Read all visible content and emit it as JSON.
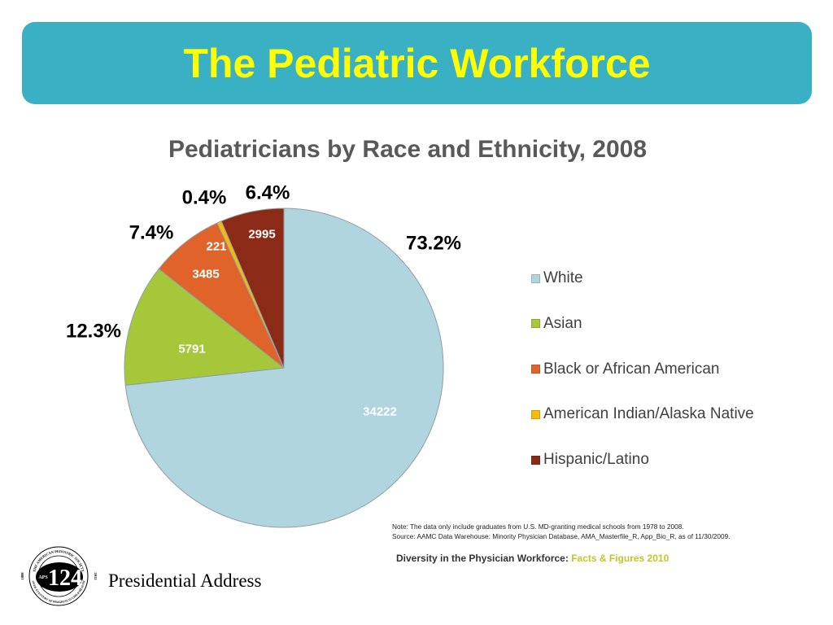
{
  "slide": {
    "title": "The Pediatric Workforce",
    "header_color": "#3AB0C4",
    "title_color": "#FFFF00"
  },
  "chart_data": {
    "type": "pie",
    "title": "Pediatricians by Race and Ethnicity, 2008",
    "categories": [
      "White",
      "Asian",
      "Black or African American",
      "American Indian/Alaska Native",
      "Hispanic/Latino"
    ],
    "values": [
      34222,
      5791,
      3485,
      221,
      2995
    ],
    "percent_labels": [
      "73.2%",
      "12.3%",
      "7.4%",
      "0.4%",
      "6.4%"
    ],
    "colors": [
      "#B0D5DF",
      "#A6C73A",
      "#E06329",
      "#F6B90E",
      "#8B2B17"
    ],
    "legend": {
      "placement": "right"
    }
  },
  "notes": {
    "note": "Note: The data only include graduates from U.S. MD-granting medical schools from 1978 to 2008.",
    "source": "Source: AAMC Data Warehouse: Minority Physician Database, AMA_Masterfile_R, App_Bio_R, as of 11/30/2009."
  },
  "citation": {
    "prefix": "Diversity in the Physician Workforce:",
    "highlight": "Facts & Figures 2010",
    "highlight_color": "#C2C52A"
  },
  "footer": {
    "label": "Presidential Address",
    "logo": {
      "icon": "aps-seal-logo",
      "number": "124",
      "initials": "APS",
      "year_start": "1888",
      "year_end": "2012",
      "top_text": "THE AMERICAN PEDIATRIC SOCIETY",
      "bottom_text": "OVER A CENTURY OF PROGRESS IN CHILD HEALTH"
    }
  }
}
